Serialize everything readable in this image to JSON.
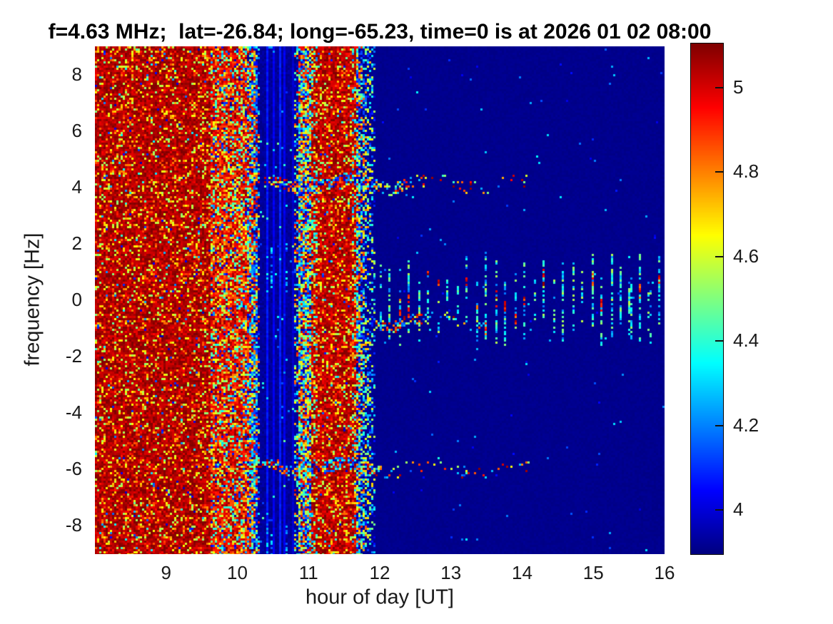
{
  "figure": {
    "background": "#ffffff",
    "text_color": "#1a1a1a"
  },
  "chart_data": {
    "type": "heatmap",
    "title": "f=4.63 MHz;  lat=-26.84; long=-65.23, time=0 is at 2026 01 02 08:00",
    "xlabel": "hour of day [UT]",
    "ylabel": "frequency [Hz]",
    "xlim": [
      8.0,
      16.0
    ],
    "ylim": [
      -9.0,
      9.0
    ],
    "x_ticks": [
      9,
      10,
      11,
      12,
      13,
      14,
      15,
      16
    ],
    "y_ticks": [
      8,
      6,
      4,
      2,
      0,
      -2,
      -4,
      -6,
      -8
    ],
    "grid": false,
    "colormap": "jet",
    "colorbar": {
      "position": "right",
      "axis_range": [
        3.896,
        5.104
      ],
      "ticks": [
        4,
        4.2,
        4.4,
        4.6,
        4.8,
        5
      ]
    },
    "regions": [
      {
        "t0": 8.0,
        "t1": 9.62,
        "type": "strong-red-noise",
        "approx_level": 5.05,
        "note": "dense dark-red noise field with orange/yellow/blue speckle"
      },
      {
        "t0": 9.62,
        "t1": 10.28,
        "type": "mixed-orange-noise",
        "approx_level": 4.85,
        "note": "brighter orange speckle, blue specks increase toward the end"
      },
      {
        "t0": 10.28,
        "t1": 10.85,
        "type": "quiet-blue-striped",
        "approx_level": 3.95,
        "note": "quiet blue band with faint vertical stripes"
      },
      {
        "t0": 10.85,
        "t1": 11.05,
        "type": "rainbow-speckle",
        "approx_level": 4.5,
        "note": "full-range colorful speckle column"
      },
      {
        "t0": 11.05,
        "t1": 11.68,
        "type": "strong-red-core",
        "approx_level": 5.05,
        "note": "second dark-red noise band"
      },
      {
        "t0": 11.68,
        "t1": 11.95,
        "type": "rainbow-fade",
        "approx_level": 4.3,
        "note": "colorful speckle fading into blue"
      },
      {
        "t0": 11.95,
        "t1": 16.0,
        "type": "quiet-blue",
        "approx_level": 3.91,
        "note": "flat quiet dark-blue background"
      }
    ],
    "features": {
      "horizontal_dotted_lines": [
        {
          "f": 4.15,
          "t0": 10.37,
          "t1": 14.1,
          "dense_t1": 12.45,
          "note": "wiggly dotted trace near +4 Hz"
        },
        {
          "f": -0.72,
          "t0": 11.95,
          "t1": 13.6,
          "dense_t1": 12.6,
          "note": "dotted trace just below 0 Hz, orange-red at start"
        },
        {
          "f": -5.9,
          "t0": 10.22,
          "t1": 14.1,
          "dense_t1": 12.0,
          "note": "sparse dotted trace near -6 Hz"
        }
      ],
      "vertical_dashes": {
        "t0": 12.01,
        "t1": 15.97,
        "period_h": 0.135,
        "f_center": 0,
        "f_span_max": 1.8,
        "note": "periodic cyan vertical dashes around 0 Hz, occasional red cores"
      },
      "pre_dashes": {
        "t0": 10.36,
        "t1": 10.9,
        "period_h": 0.065,
        "note": "faint cyan dashes near 0..2 Hz and below -7.7 Hz inside the quiet blue band"
      }
    }
  }
}
